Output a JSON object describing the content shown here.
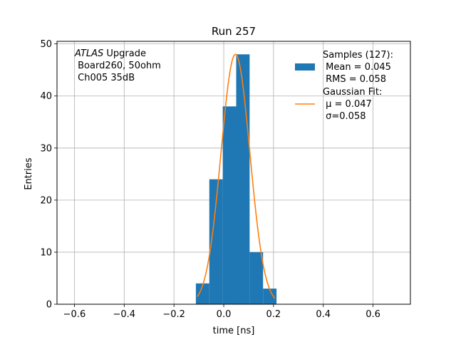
{
  "chart_data": {
    "type": "bar",
    "title": "Run 257",
    "xlabel": "time [ns]",
    "ylabel": "Entries",
    "xlim": [
      -0.67,
      0.75
    ],
    "ylim": [
      0,
      50.5
    ],
    "grid": true,
    "x_ticks": [
      -0.6,
      -0.4,
      -0.2,
      0.0,
      0.2,
      0.4,
      0.6
    ],
    "x_tick_labels": [
      "−0.6",
      "−0.4",
      "−0.2",
      "0.0",
      "0.2",
      "0.4",
      "0.6"
    ],
    "y_ticks": [
      0,
      10,
      20,
      30,
      40,
      50
    ],
    "y_tick_labels": [
      "0",
      "10",
      "20",
      "30",
      "40",
      "50"
    ],
    "histogram": {
      "color": "#1f77b4",
      "bins": [
        {
          "x0": -0.112,
          "x1": -0.058,
          "count": 4
        },
        {
          "x0": -0.058,
          "x1": -0.004,
          "count": 24
        },
        {
          "x0": -0.004,
          "x1": 0.05,
          "count": 38
        },
        {
          "x0": 0.05,
          "x1": 0.104,
          "count": 48
        },
        {
          "x0": 0.104,
          "x1": 0.158,
          "count": 10
        },
        {
          "x0": 0.158,
          "x1": 0.212,
          "count": 3
        }
      ]
    },
    "fit": {
      "color": "#ff7f0e",
      "amplitude": 48,
      "mu": 0.047,
      "sigma": 0.058,
      "x_range": [
        -0.106,
        0.206
      ]
    },
    "legend": {
      "placement": "top-right",
      "entries": [
        {
          "kind": "patch",
          "color": "#1f77b4",
          "lines": [
            "Samples (127):",
            " Mean = 0.045",
            " RMS = 0.058"
          ]
        },
        {
          "kind": "line",
          "color": "#ff7f0e",
          "lines": [
            "Gaussian Fit:",
            " μ = 0.047",
            " σ=0.058"
          ]
        }
      ]
    },
    "annotation": {
      "placement": "top-left",
      "italic_prefix": "ATLAS",
      "line1_rest": " Upgrade",
      "line2": " Board260, 50ohm",
      "line3": " Ch005 35dB"
    }
  }
}
